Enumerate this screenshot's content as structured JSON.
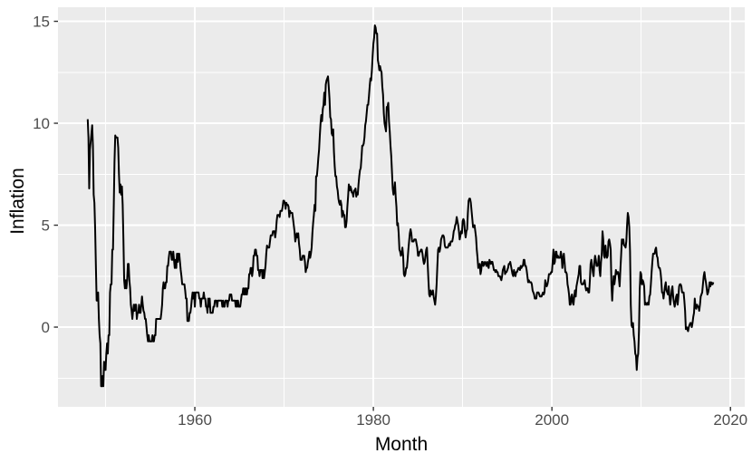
{
  "figure": {
    "background": "#FFFFFF",
    "panel_background": "#EBEBEB",
    "gridline_color": "#FFFFFF",
    "axis_text_color": "#4D4D4D",
    "tick_mark_color": "#333333",
    "line_color": "#000000"
  },
  "chart_data": {
    "type": "line",
    "title": "",
    "xlabel": "Month",
    "ylabel": "Inflation",
    "grid": true,
    "legend_position": "none",
    "x_ticks": [
      1960,
      1980,
      2000,
      2020
    ],
    "x_tick_labels": [
      "1960",
      "1980",
      "2000",
      "2020"
    ],
    "x_minor_ticks": [
      1950,
      1970,
      1990,
      2010
    ],
    "y_ticks": [
      0,
      5,
      10,
      15
    ],
    "y_tick_labels": [
      "0",
      "5",
      "10",
      "15"
    ],
    "y_minor_ticks": [
      -2.5,
      2.5,
      7.5,
      12.5
    ],
    "xlim": [
      1944.67,
      2021.6
    ],
    "ylim": [
      -3.91,
      15.69
    ],
    "series": [
      {
        "name": "Inflation",
        "frequency": "monthly",
        "x_start_year": 1948,
        "x_start_month": 1,
        "values": [
          10.2,
          9.3,
          6.8,
          8.7,
          9.1,
          9.5,
          9.9,
          8.9,
          6.5,
          6.1,
          4.8,
          3.0,
          1.3,
          1.3,
          1.7,
          0.4,
          -0.4,
          -0.8,
          -2.9,
          -2.9,
          -2.4,
          -2.9,
          -1.7,
          -2.1,
          -2.1,
          -1.3,
          -0.8,
          -1.3,
          -0.4,
          -0.4,
          1.7,
          2.1,
          2.1,
          3.8,
          3.8,
          5.9,
          8.1,
          9.4,
          9.3,
          9.3,
          9.3,
          8.8,
          7.5,
          6.6,
          7.0,
          6.5,
          6.9,
          6.0,
          4.3,
          2.3,
          1.9,
          2.3,
          1.9,
          2.3,
          3.1,
          3.1,
          2.3,
          1.9,
          1.1,
          0.8,
          0.4,
          0.8,
          1.1,
          0.8,
          1.1,
          1.1,
          0.4,
          0.7,
          0.7,
          1.1,
          0.7,
          0.7,
          1.1,
          1.5,
          1.1,
          0.8,
          0.7,
          0.4,
          0.4,
          0.0,
          -0.4,
          -0.7,
          -0.4,
          -0.7,
          -0.7,
          -0.7,
          -0.7,
          -0.4,
          -0.7,
          -0.7,
          -0.4,
          -0.4,
          0.4,
          0.4,
          0.4,
          0.4,
          0.4,
          0.4,
          0.4,
          0.7,
          1.1,
          1.9,
          2.2,
          1.9,
          1.9,
          2.2,
          2.2,
          3.0,
          3.0,
          3.4,
          3.7,
          3.7,
          3.7,
          3.3,
          3.3,
          3.7,
          3.3,
          2.9,
          3.3,
          2.9,
          3.6,
          3.2,
          3.6,
          3.6,
          3.2,
          2.8,
          2.5,
          2.1,
          2.1,
          2.1,
          2.1,
          1.8,
          1.4,
          1.4,
          0.3,
          0.3,
          0.3,
          0.7,
          0.7,
          1.0,
          1.4,
          1.7,
          1.4,
          1.7,
          1.0,
          1.7,
          1.7,
          1.7,
          1.7,
          1.7,
          1.4,
          1.4,
          1.0,
          1.4,
          1.4,
          1.4,
          1.7,
          1.4,
          1.4,
          1.0,
          1.0,
          0.7,
          1.4,
          1.0,
          1.4,
          0.7,
          0.7,
          0.7,
          0.7,
          1.0,
          1.0,
          1.3,
          1.3,
          1.3,
          1.0,
          1.3,
          1.3,
          1.3,
          1.3,
          1.3,
          1.3,
          1.0,
          1.3,
          1.0,
          1.0,
          1.3,
          1.3,
          1.3,
          1.0,
          1.3,
          1.3,
          1.6,
          1.6,
          1.6,
          1.3,
          1.3,
          1.3,
          1.3,
          1.3,
          1.0,
          1.3,
          1.0,
          1.3,
          1.0,
          1.0,
          1.0,
          1.3,
          1.6,
          1.6,
          1.9,
          1.6,
          1.9,
          1.6,
          1.9,
          1.6,
          1.9,
          1.9,
          2.6,
          2.6,
          2.9,
          2.9,
          2.5,
          2.8,
          3.5,
          3.5,
          3.8,
          3.8,
          3.5,
          3.5,
          2.8,
          2.8,
          2.5,
          2.8,
          2.8,
          2.8,
          2.4,
          2.8,
          2.4,
          2.7,
          3.0,
          3.6,
          4.0,
          3.9,
          3.9,
          3.9,
          4.2,
          4.5,
          4.5,
          4.5,
          4.7,
          4.7,
          4.7,
          4.4,
          4.7,
          5.2,
          5.5,
          5.5,
          5.5,
          5.4,
          5.7,
          5.7,
          5.7,
          5.9,
          6.2,
          6.2,
          6.1,
          5.8,
          6.1,
          6.0,
          6.0,
          5.9,
          5.4,
          5.7,
          5.6,
          5.6,
          5.6,
          5.3,
          5.0,
          4.7,
          4.2,
          4.4,
          4.6,
          4.4,
          4.6,
          4.1,
          3.8,
          3.3,
          3.3,
          3.3,
          3.5,
          3.5,
          3.5,
          3.2,
          2.7,
          2.9,
          2.9,
          3.2,
          3.4,
          3.7,
          3.4,
          3.6,
          3.9,
          4.6,
          5.1,
          5.5,
          6.0,
          5.7,
          7.4,
          7.4,
          7.8,
          8.3,
          8.7,
          9.4,
          10.0,
          10.4,
          10.1,
          10.7,
          10.9,
          11.5,
          10.9,
          11.9,
          12.1,
          12.2,
          12.3,
          11.8,
          11.2,
          10.3,
          10.2,
          9.5,
          9.4,
          9.7,
          8.6,
          7.9,
          7.4,
          7.4,
          6.9,
          6.7,
          6.3,
          6.1,
          6.0,
          6.2,
          6.0,
          5.4,
          5.7,
          5.5,
          5.5,
          4.9,
          4.9,
          5.2,
          5.9,
          6.4,
          7.0,
          6.7,
          6.9,
          6.8,
          6.6,
          6.6,
          6.4,
          6.7,
          6.7,
          6.8,
          6.4,
          6.6,
          6.5,
          7.0,
          7.4,
          7.7,
          7.8,
          8.3,
          8.9,
          8.9,
          9.0,
          9.3,
          9.9,
          10.1,
          10.5,
          10.9,
          10.9,
          11.3,
          11.8,
          12.2,
          12.1,
          12.6,
          13.3,
          13.9,
          14.2,
          14.8,
          14.7,
          14.4,
          14.4,
          13.1,
          12.9,
          12.6,
          12.8,
          12.6,
          12.5,
          11.8,
          11.4,
          10.5,
          10.0,
          9.8,
          9.6,
          10.8,
          10.8,
          11.0,
          10.1,
          9.6,
          8.9,
          8.4,
          7.6,
          6.8,
          6.5,
          6.7,
          7.1,
          6.4,
          5.9,
          5.0,
          5.1,
          4.6,
          3.8,
          3.7,
          3.5,
          3.6,
          3.9,
          3.5,
          2.6,
          2.5,
          2.6,
          2.9,
          2.9,
          3.3,
          3.8,
          4.2,
          4.6,
          4.8,
          4.6,
          4.2,
          4.2,
          4.2,
          4.3,
          4.3,
          4.3,
          4.1,
          3.9,
          3.5,
          3.5,
          3.7,
          3.7,
          3.8,
          3.8,
          3.6,
          3.3,
          3.1,
          3.2,
          3.5,
          3.8,
          3.9,
          3.1,
          2.3,
          1.6,
          1.5,
          1.8,
          1.6,
          1.6,
          1.8,
          1.5,
          1.3,
          1.1,
          1.5,
          2.1,
          3.0,
          3.8,
          3.9,
          3.7,
          3.9,
          4.3,
          4.4,
          4.5,
          4.5,
          4.4,
          4.0,
          3.9,
          3.9,
          3.9,
          3.9,
          4.0,
          4.1,
          4.0,
          4.2,
          4.2,
          4.2,
          4.4,
          4.7,
          4.8,
          5.0,
          5.1,
          5.4,
          5.2,
          5.0,
          4.7,
          4.3,
          4.5,
          4.7,
          4.6,
          5.2,
          5.3,
          5.2,
          4.7,
          4.4,
          4.7,
          4.8,
          5.6,
          6.2,
          6.3,
          6.3,
          6.1,
          5.7,
          5.3,
          4.9,
          4.9,
          5.0,
          4.7,
          4.4,
          3.8,
          3.4,
          2.9,
          3.0,
          3.1,
          2.6,
          2.8,
          3.2,
          3.2,
          3.0,
          3.1,
          3.2,
          3.1,
          3.0,
          3.2,
          3.0,
          2.9,
          3.3,
          3.2,
          3.1,
          3.2,
          3.2,
          3.0,
          2.8,
          2.8,
          2.7,
          2.8,
          2.7,
          2.7,
          2.5,
          2.5,
          2.5,
          2.4,
          2.3,
          2.5,
          2.8,
          2.9,
          3.0,
          2.6,
          2.7,
          2.7,
          2.8,
          2.9,
          3.1,
          3.1,
          3.2,
          3.0,
          2.8,
          2.6,
          2.5,
          2.8,
          2.6,
          2.5,
          2.7,
          2.7,
          2.8,
          2.9,
          2.9,
          2.8,
          3.0,
          2.9,
          3.0,
          3.0,
          3.3,
          3.3,
          3.0,
          3.0,
          2.8,
          2.5,
          2.2,
          2.3,
          2.2,
          2.2,
          2.2,
          2.1,
          1.8,
          1.7,
          1.6,
          1.4,
          1.4,
          1.4,
          1.7,
          1.7,
          1.7,
          1.6,
          1.5,
          1.5,
          1.5,
          1.6,
          1.7,
          1.6,
          1.7,
          2.3,
          2.1,
          2.0,
          2.1,
          2.3,
          2.6,
          2.6,
          2.6,
          2.7,
          2.7,
          3.2,
          3.8,
          3.1,
          3.2,
          3.7,
          3.7,
          3.4,
          3.5,
          3.4,
          3.4,
          3.4,
          3.7,
          3.5,
          2.9,
          3.3,
          3.6,
          3.2,
          2.7,
          2.7,
          2.6,
          2.1,
          1.9,
          1.6,
          1.1,
          1.1,
          1.5,
          1.6,
          1.2,
          1.1,
          1.5,
          1.8,
          1.5,
          2.0,
          2.2,
          2.4,
          2.6,
          3.0,
          3.0,
          2.2,
          2.1,
          2.1,
          2.1,
          2.2,
          2.3,
          2.0,
          1.8,
          1.9,
          1.9,
          1.7,
          1.7,
          2.3,
          3.1,
          3.3,
          3.0,
          2.7,
          2.5,
          3.2,
          3.5,
          3.3,
          3.0,
          3.0,
          3.1,
          3.5,
          2.8,
          2.5,
          3.2,
          3.6,
          4.7,
          4.3,
          3.5,
          3.4,
          4.0,
          3.6,
          3.4,
          3.5,
          4.2,
          4.3,
          4.1,
          3.8,
          2.1,
          1.3,
          2.0,
          2.5,
          2.1,
          2.4,
          2.8,
          2.6,
          2.7,
          2.7,
          2.4,
          2.0,
          2.8,
          3.5,
          4.3,
          4.1,
          4.3,
          4.0,
          4.0,
          3.9,
          4.2,
          5.0,
          5.6,
          5.4,
          4.9,
          3.7,
          1.1,
          0.1,
          0.0,
          0.2,
          -0.4,
          -0.7,
          -1.3,
          -1.4,
          -2.1,
          -1.5,
          -1.3,
          -0.2,
          1.8,
          2.7,
          2.6,
          2.1,
          2.3,
          2.2,
          2.0,
          1.1,
          1.2,
          1.1,
          1.1,
          1.2,
          1.1,
          1.5,
          1.6,
          2.1,
          2.7,
          3.2,
          3.6,
          3.6,
          3.6,
          3.8,
          3.9,
          3.5,
          3.4,
          3.0,
          2.9,
          2.9,
          2.7,
          2.3,
          1.7,
          1.7,
          1.4,
          1.7,
          2.0,
          2.2,
          1.8,
          1.7,
          1.6,
          2.0,
          1.5,
          1.1,
          1.4,
          1.8,
          2.0,
          1.5,
          1.2,
          1.0,
          1.2,
          1.5,
          1.6,
          1.1,
          1.5,
          2.0,
          2.1,
          2.1,
          2.0,
          1.7,
          1.7,
          1.7,
          1.3,
          0.8,
          -0.1,
          0.0,
          -0.1,
          -0.2,
          0.0,
          0.1,
          0.2,
          0.2,
          0.0,
          0.2,
          0.5,
          0.7,
          1.4,
          1.0,
          0.9,
          1.1,
          1.0,
          1.0,
          0.8,
          1.1,
          1.5,
          1.6,
          1.7,
          2.1,
          2.5,
          2.7,
          2.4,
          2.2,
          1.9,
          1.6,
          1.7,
          1.9,
          2.2,
          2.0,
          2.2,
          2.1,
          2.1,
          2.2
        ]
      }
    ]
  }
}
